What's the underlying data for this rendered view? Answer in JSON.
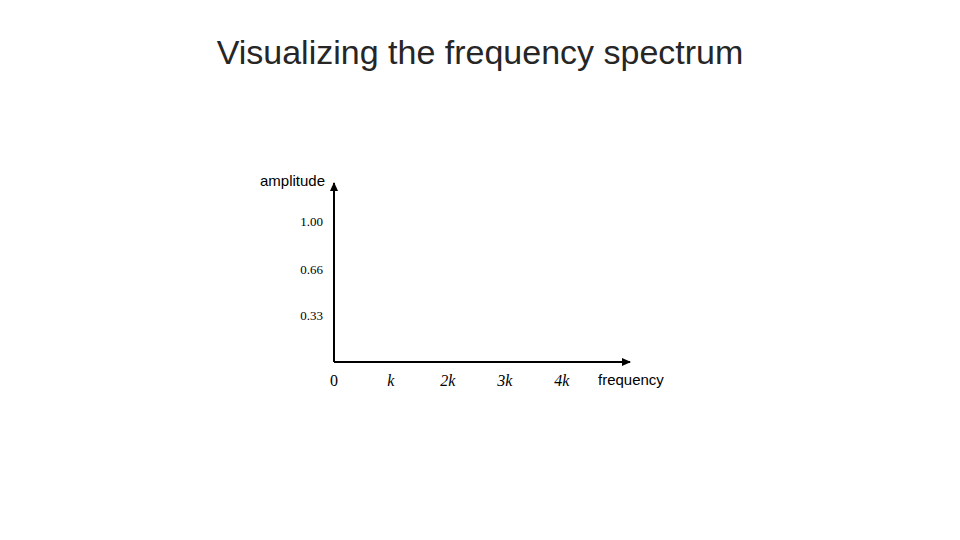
{
  "chart_data": {
    "type": "line",
    "title": "Visualizing the frequency spectrum",
    "x_label": "frequency",
    "y_label": "amplitude",
    "xlim": [
      0,
      5.2
    ],
    "xticks": [
      0,
      {
        "value": 1,
        "label": "k"
      },
      {
        "value": 2,
        "label": "2k"
      },
      {
        "value": 3,
        "label": "3k"
      },
      {
        "value": 4,
        "label": "4k"
      }
    ],
    "ylim": [
      0,
      1.28
    ],
    "yticks": [
      0.33,
      0.66,
      {
        "value": 1,
        "label": "1.00"
      }
    ],
    "grid": false
  }
}
